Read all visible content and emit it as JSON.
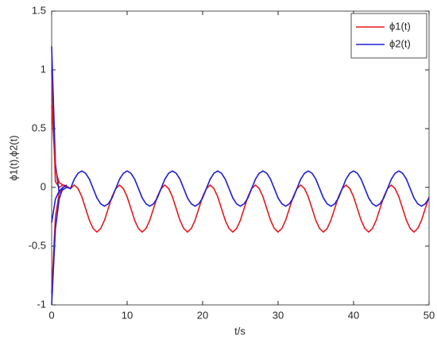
{
  "chart_data": {
    "type": "line",
    "xlabel": "t/s",
    "ylabel": "ϕ1(t),ϕ2(t)",
    "xlim": [
      0,
      50
    ],
    "xticks": [
      0,
      10,
      20,
      30,
      40,
      50
    ],
    "ylim": [
      -1,
      1.5
    ],
    "yticks": [
      -1,
      -0.5,
      0,
      0.5,
      1,
      1.5
    ],
    "grid": false,
    "legend": "upper right",
    "x": [
      0,
      0.5,
      1,
      1.5,
      2,
      2.5,
      3,
      3.5,
      4,
      4.5,
      5,
      5.5,
      6,
      6.5,
      7,
      7.5,
      8,
      8.5,
      9,
      9.5,
      10,
      10.5,
      11,
      11.5,
      12,
      12.5,
      13,
      13.5,
      14,
      14.5,
      15,
      15.5,
      16,
      16.5,
      17,
      17.5,
      18,
      18.5,
      19,
      19.5,
      20,
      20.5,
      21,
      21.5,
      22,
      22.5,
      23,
      23.5,
      24,
      24.5,
      25,
      25.5,
      26,
      26.5,
      27,
      27.5,
      28,
      28.5,
      29,
      29.5,
      30,
      30.5,
      31,
      31.5,
      32,
      32.5,
      33,
      33.5,
      34,
      34.5,
      35,
      35.5,
      36,
      36.5,
      37,
      37.5,
      38,
      38.5,
      39,
      39.5,
      40,
      40.5,
      41,
      41.5,
      42,
      42.5,
      43,
      43.5,
      44,
      44.5,
      45,
      45.5,
      46,
      46.5,
      47,
      47.5,
      48,
      48.5,
      49,
      49.5,
      50
    ],
    "series": [
      {
        "name": "ϕ1(t)",
        "color": "#e41a1c",
        "values": [
          1.0,
          0.05,
          0.0,
          0.02,
          0.01,
          -0.01,
          0.02,
          -0.01,
          -0.08,
          -0.18,
          -0.28,
          -0.35,
          -0.38,
          -0.35,
          -0.28,
          -0.18,
          -0.08,
          -0.01,
          0.02,
          -0.01,
          -0.08,
          -0.18,
          -0.28,
          -0.35,
          -0.38,
          -0.35,
          -0.28,
          -0.18,
          -0.08,
          -0.01,
          0.02,
          -0.01,
          -0.08,
          -0.18,
          -0.28,
          -0.35,
          -0.38,
          -0.35,
          -0.28,
          -0.18,
          -0.08,
          -0.01,
          0.02,
          -0.01,
          -0.08,
          -0.18,
          -0.28,
          -0.35,
          -0.38,
          -0.35,
          -0.28,
          -0.18,
          -0.08,
          -0.01,
          0.02,
          -0.01,
          -0.08,
          -0.18,
          -0.28,
          -0.35,
          -0.38,
          -0.35,
          -0.28,
          -0.18,
          -0.08,
          -0.01,
          0.02,
          -0.01,
          -0.08,
          -0.18,
          -0.28,
          -0.35,
          -0.38,
          -0.35,
          -0.28,
          -0.18,
          -0.08,
          -0.01,
          0.02,
          -0.01,
          -0.08,
          -0.18,
          -0.28,
          -0.35,
          -0.38,
          -0.35,
          -0.28,
          -0.18,
          -0.08,
          -0.01,
          0.02,
          -0.01,
          -0.08,
          -0.18,
          -0.28,
          -0.35,
          -0.38,
          -0.35,
          -0.28,
          -0.18,
          -0.08
        ]
      },
      {
        "name": "ϕ2(t)",
        "color": "#1f1fd6",
        "values": [
          1.2,
          0.2,
          -0.05,
          -0.02,
          0.0,
          -0.01,
          0.07,
          0.12,
          0.14,
          0.12,
          0.07,
          -0.01,
          -0.09,
          -0.14,
          -0.16,
          -0.14,
          -0.09,
          -0.01,
          0.07,
          0.12,
          0.14,
          0.12,
          0.07,
          -0.01,
          -0.09,
          -0.14,
          -0.16,
          -0.14,
          -0.09,
          -0.01,
          0.07,
          0.12,
          0.14,
          0.12,
          0.07,
          -0.01,
          -0.09,
          -0.14,
          -0.16,
          -0.14,
          -0.09,
          -0.01,
          0.07,
          0.12,
          0.14,
          0.12,
          0.07,
          -0.01,
          -0.09,
          -0.14,
          -0.16,
          -0.14,
          -0.09,
          -0.01,
          0.07,
          0.12,
          0.14,
          0.12,
          0.07,
          -0.01,
          -0.09,
          -0.14,
          -0.16,
          -0.14,
          -0.09,
          -0.01,
          0.07,
          0.12,
          0.14,
          0.12,
          0.07,
          -0.01,
          -0.09,
          -0.14,
          -0.16,
          -0.14,
          -0.09,
          -0.01,
          0.07,
          0.12,
          0.14,
          0.12,
          0.07,
          -0.01,
          -0.09,
          -0.14,
          -0.16,
          -0.14,
          -0.09,
          -0.01,
          0.07,
          0.12,
          0.14,
          0.12,
          0.07,
          -0.01,
          -0.09,
          -0.14,
          -0.16,
          -0.14,
          -0.09
        ]
      },
      {
        "color": "#e41a1c",
        "x": [
          0,
          0.5,
          1,
          1.5,
          2
        ],
        "values": [
          0.7,
          0.15,
          0.04,
          0.02,
          0.01
        ]
      },
      {
        "color": "#e41a1c",
        "x": [
          0,
          0.5,
          1,
          1.5,
          2
        ],
        "values": [
          -0.9,
          -0.25,
          -0.05,
          0.0,
          0.01
        ]
      },
      {
        "color": "#1f1fd6",
        "x": [
          0,
          0.5,
          1,
          1.5,
          2
        ],
        "values": [
          -1.0,
          -0.35,
          -0.1,
          0.0,
          0.02
        ]
      },
      {
        "color": "#1f1fd6",
        "x": [
          0,
          0.5,
          1,
          1.5,
          2
        ],
        "values": [
          -0.3,
          -0.1,
          -0.03,
          0.0,
          0.02
        ]
      }
    ]
  }
}
